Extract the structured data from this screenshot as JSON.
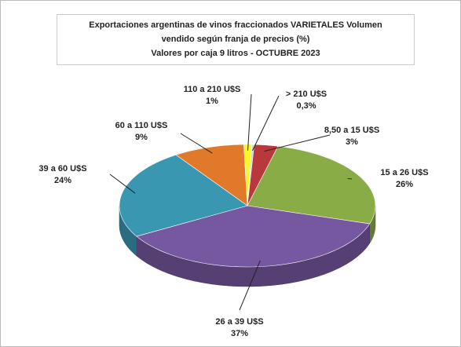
{
  "chart_data": {
    "type": "pie",
    "title": [
      "Exportaciones argentinas de vinos fraccionados VARIETALES Volumen",
      "vendido según franja de precios (%)",
      "Valores por caja  9 litros -  OCTUBRE 2023"
    ],
    "categories": [
      "> 210 U$S",
      "8,50 a 15 U$S",
      "15 a 26 U$S",
      "26 a 39 U$S",
      "39 a 60 U$S",
      "60 a 110 U$S",
      "110 a 210 U$S"
    ],
    "values": [
      0.3,
      3,
      26,
      37,
      24,
      9,
      1
    ],
    "value_labels": [
      "0,3%",
      "3%",
      "26%",
      "37%",
      "24%",
      "9%",
      "1%"
    ],
    "colors": [
      "#c9d6e8",
      "#b8383c",
      "#8aac46",
      "#7658a0",
      "#3a97b2",
      "#e07a2a",
      "#f7f72a"
    ]
  }
}
